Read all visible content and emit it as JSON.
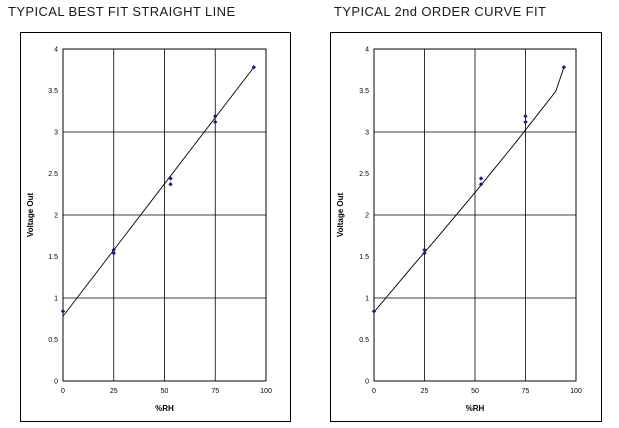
{
  "chart_data": [
    {
      "type": "scatter",
      "title": "TYPICAL BEST FIT STRAIGHT LINE",
      "xlabel": "%RH",
      "ylabel": "Voltage Out",
      "xlim": [
        0,
        100
      ],
      "ylim": [
        0,
        4
      ],
      "x_ticks": [
        "0",
        "25",
        "50",
        "75",
        "100"
      ],
      "y_ticks": [
        "0",
        "0.5",
        "1",
        "1.5",
        "2",
        "2.5",
        "3",
        "3.5",
        "4"
      ],
      "grid": true,
      "points": [
        {
          "x": 0,
          "y": 0.84
        },
        {
          "x": 25,
          "y": 1.54
        },
        {
          "x": 25,
          "y": 1.58
        },
        {
          "x": 53,
          "y": 2.37
        },
        {
          "x": 53,
          "y": 2.44
        },
        {
          "x": 75,
          "y": 3.12
        },
        {
          "x": 75,
          "y": 3.19
        },
        {
          "x": 94,
          "y": 3.78
        }
      ],
      "fit": {
        "type": "linear",
        "x": [
          0,
          94
        ],
        "y": [
          0.78,
          3.78
        ]
      }
    },
    {
      "type": "scatter",
      "title": "TYPICAL 2nd ORDER CURVE FIT",
      "xlabel": "%RH",
      "ylabel": "Voltage Out",
      "xlim": [
        0,
        100
      ],
      "ylim": [
        0,
        4
      ],
      "x_ticks": [
        "0",
        "25",
        "50",
        "75",
        "100"
      ],
      "y_ticks": [
        "0",
        "0.5",
        "1",
        "1.5",
        "2",
        "2.5",
        "3",
        "3.5",
        "4"
      ],
      "grid": true,
      "points": [
        {
          "x": 0,
          "y": 0.84
        },
        {
          "x": 25,
          "y": 1.54
        },
        {
          "x": 25,
          "y": 1.58
        },
        {
          "x": 53,
          "y": 2.37
        },
        {
          "x": 53,
          "y": 2.44
        },
        {
          "x": 75,
          "y": 3.12
        },
        {
          "x": 75,
          "y": 3.19
        },
        {
          "x": 94,
          "y": 3.78
        }
      ],
      "fit": {
        "type": "quadratic",
        "x": [
          0,
          10,
          20,
          30,
          40,
          50,
          60,
          70,
          80,
          90,
          94
        ],
        "y": [
          0.83,
          1.12,
          1.41,
          1.69,
          1.98,
          2.27,
          2.57,
          2.87,
          3.18,
          3.49,
          3.78
        ]
      }
    }
  ]
}
